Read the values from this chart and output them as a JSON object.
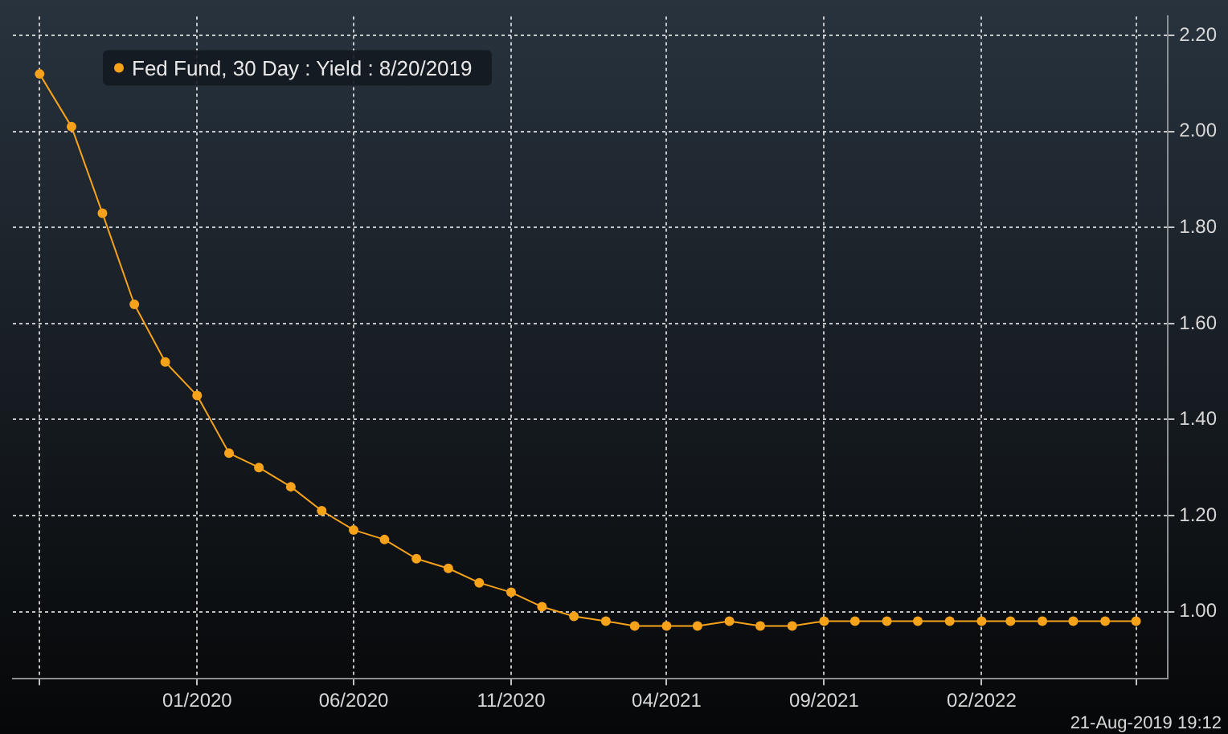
{
  "chart_data": {
    "type": "line",
    "x": [
      "2019-08",
      "2019-09",
      "2019-10",
      "2019-11",
      "2019-12",
      "2020-01",
      "2020-02",
      "2020-03",
      "2020-04",
      "2020-05",
      "2020-06",
      "2020-07",
      "2020-08",
      "2020-09",
      "2020-10",
      "2020-11",
      "2020-12",
      "2021-01",
      "2021-02",
      "2021-03",
      "2021-04",
      "2021-05",
      "2021-06",
      "2021-07",
      "2021-08",
      "2021-09",
      "2021-10",
      "2021-11",
      "2021-12",
      "2022-01",
      "2022-02",
      "2022-03",
      "2022-04",
      "2022-05",
      "2022-06",
      "2022-07"
    ],
    "series": [
      {
        "name": "Fed Fund, 30 Day : Yield : 8/20/2019",
        "color": "#f7a21b",
        "values": [
          2.12,
          2.01,
          1.83,
          1.64,
          1.52,
          1.45,
          1.33,
          1.3,
          1.26,
          1.21,
          1.17,
          1.15,
          1.11,
          1.09,
          1.06,
          1.04,
          1.01,
          0.99,
          0.98,
          0.97,
          0.97,
          0.97,
          0.98,
          0.97,
          0.97,
          0.98,
          0.98,
          0.98,
          0.98,
          0.98,
          0.98,
          0.98,
          0.98,
          0.98,
          0.98,
          0.98
        ]
      }
    ],
    "xlim": [
      "2019-07-06",
      "2022-08-01"
    ],
    "xticks": [
      {
        "value": "2019-08",
        "label": null
      },
      {
        "value": "2020-01",
        "label": "01/2020"
      },
      {
        "value": "2020-06",
        "label": "06/2020"
      },
      {
        "value": "2020-11",
        "label": "11/2020"
      },
      {
        "value": "2021-04",
        "label": "04/2021"
      },
      {
        "value": "2021-09",
        "label": "09/2021"
      },
      {
        "value": "2022-02",
        "label": "02/2022"
      },
      {
        "value": "2022-07",
        "label": null
      }
    ],
    "ylim": [
      0.86,
      2.24
    ],
    "yticks": [
      {
        "value": 1.0,
        "label": "1.00"
      },
      {
        "value": 1.2,
        "label": "1.20"
      },
      {
        "value": 1.4,
        "label": "1.40"
      },
      {
        "value": 1.6,
        "label": "1.60"
      },
      {
        "value": 1.8,
        "label": "1.80"
      },
      {
        "value": 2.0,
        "label": "2.00"
      },
      {
        "value": 2.2,
        "label": "2.20"
      }
    ],
    "grid": true,
    "legend": "top left",
    "marker": "circle",
    "line_style": "solid",
    "annotations": [
      "21-Aug-2019 19:12"
    ]
  }
}
